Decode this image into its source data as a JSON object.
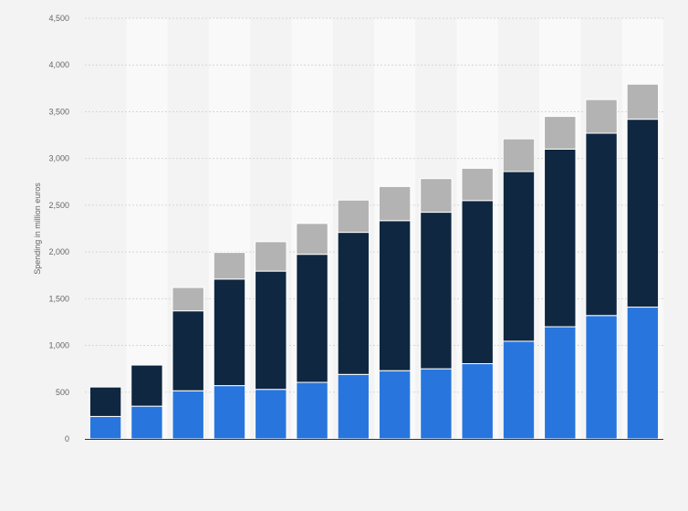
{
  "chart_data": {
    "type": "bar",
    "stacked": true,
    "title": "",
    "xlabel": "",
    "ylabel": "Spending in million euros",
    "ylim": [
      0,
      4500
    ],
    "yticks": [
      0,
      500,
      1000,
      1500,
      2000,
      2500,
      3000,
      3500,
      4000,
      4500
    ],
    "ytick_labels": [
      "0",
      "500",
      "1,000",
      "1,500",
      "2,000",
      "2,500",
      "3,000",
      "3,500",
      "4,000",
      "4,500"
    ],
    "grid": true,
    "legend": "none",
    "categories": [
      "",
      "",
      "",
      "",
      "",
      "",
      "",
      "",
      "",
      "",
      "",
      "",
      "",
      ""
    ],
    "series": [
      {
        "color": "#2876dd",
        "values": [
          240,
          350,
          515,
          570,
          530,
          605,
          690,
          730,
          750,
          805,
          1045,
          1200,
          1320,
          1410
        ]
      },
      {
        "color": "#0f2740",
        "values": [
          315,
          440,
          855,
          1140,
          1265,
          1370,
          1520,
          1605,
          1675,
          1745,
          1815,
          1900,
          1950,
          2010
        ]
      },
      {
        "color": "#b3b3b3",
        "values": [
          0,
          0,
          250,
          285,
          315,
          330,
          345,
          365,
          360,
          345,
          350,
          350,
          360,
          375
        ]
      }
    ]
  },
  "colors": {
    "background": "#f3f3f3",
    "band": "#f9f9f9",
    "grid": "#d6d6d6",
    "axis": "#333333"
  }
}
